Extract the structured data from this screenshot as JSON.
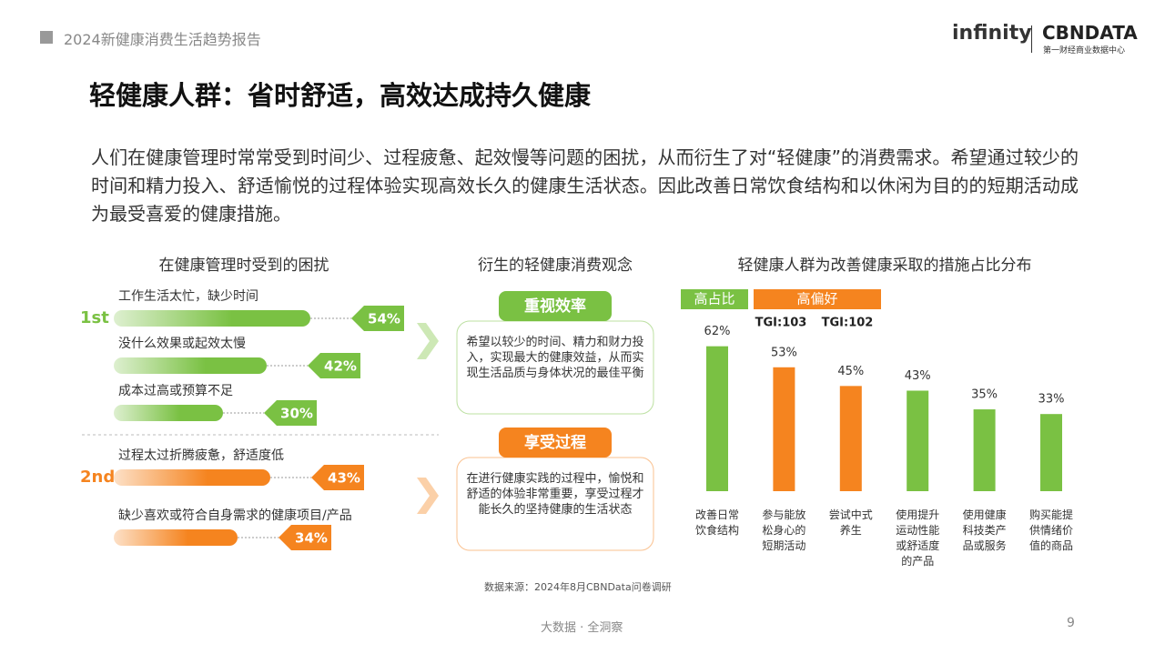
{
  "header": {
    "report": "2024新健康消费生活趋势报告",
    "logo_left": "infinity",
    "logo_right": "CBNDATA",
    "logo_right_sub": "第一财经商业数据中心"
  },
  "heading": "轻健康人群：省时舒适，高效达成持久健康",
  "paragraph": "人们在健康管理时常常受到时间少、过程疲惫、起效慢等问题的困扰，从而衍生了对“轻健康”的消费需求。希望通过较少的时间和精力投入、舒适愉悦的过程体验实现高效长久的健康生活状态。因此改善日常饮食结构和以休闲为目的的短期活动成为最受喜爱的健康措施。",
  "concepts": {
    "title": "衍生的轻健康消费观念",
    "cards": [
      {
        "title": "重视效率",
        "text": "希望以较少的时间、精力和财力投入，实现最大的健康效益，从而实现生活品质与身体状况的最佳平衡",
        "color": "#7ac143"
      },
      {
        "title": "享受过程",
        "text": "在进行健康实践的过程中，愉悦和舒适的体验非常重要，享受过程才能长久的坚持健康的生活状态",
        "color": "#f5841f"
      }
    ]
  },
  "chart_data": [
    {
      "type": "bar",
      "orientation": "horizontal",
      "title": "在健康管理时受到的困扰",
      "categories": [
        "工作生活太忙，缺少时间",
        "没什么效果或起效太慢",
        "成本过高或预算不足",
        "过程太过折腾疲惫，舒适度低",
        "缺少喜欢或符合自身需求的健康项目/产品"
      ],
      "values": [
        54,
        42,
        30,
        43,
        34
      ],
      "value_labels": [
        "54%",
        "42%",
        "30%",
        "43%",
        "34%"
      ],
      "colors": [
        "#7ac143",
        "#7ac143",
        "#7ac143",
        "#f5841f",
        "#f5841f"
      ],
      "ranks": [
        "1st",
        "2nd"
      ],
      "rank_colors": [
        "#7ac143",
        "#f5841f"
      ]
    },
    {
      "type": "bar",
      "title": "轻健康人群为改善健康采取的措施占比分布",
      "categories": [
        "改善日常饮食结构",
        "参与能放松身心的短期活动",
        "尝试中式养生",
        "使用提升运动性能或舒适度的产品",
        "使用健康科技类产品或服务",
        "购买能提供情绪价值的商品"
      ],
      "values": [
        62,
        53,
        45,
        43,
        35,
        33
      ],
      "value_labels": [
        "62%",
        "53%",
        "45%",
        "43%",
        "35%",
        "33%"
      ],
      "colors": [
        "#7ac143",
        "#f5841f",
        "#f5841f",
        "#7ac143",
        "#7ac143",
        "#7ac143"
      ],
      "legend": [
        {
          "name": "高占比",
          "color": "#7ac143"
        },
        {
          "name": "高偏好",
          "color": "#f5841f"
        }
      ],
      "annotations": [
        "TGI:103",
        "TGI:102"
      ]
    }
  ],
  "source": "数据来源：2024年8月CBNData问卷调研",
  "footer": {
    "slogan": "大数据 · 全洞察",
    "page": "9"
  }
}
